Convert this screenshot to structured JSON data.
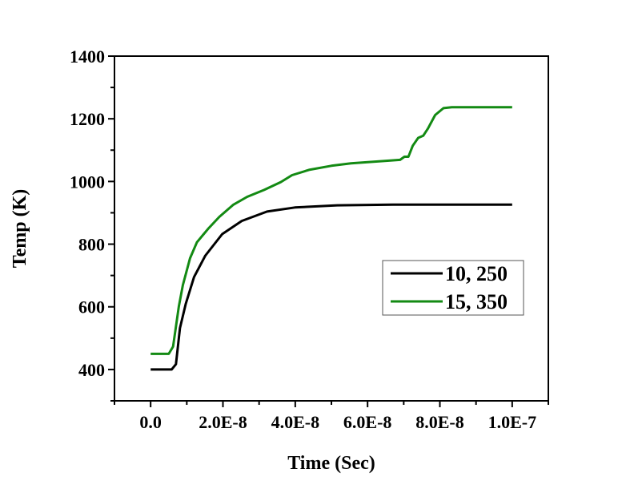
{
  "chart_data": {
    "type": "line",
    "title": "",
    "xlabel": "Time (Sec)",
    "ylabel": "Temp (K)",
    "xlim": [
      -1e-08,
      1.1e-07
    ],
    "ylim": [
      300,
      1400
    ],
    "xticks": [
      0,
      2e-08,
      4e-08,
      6e-08,
      8e-08,
      1e-07
    ],
    "xtick_labels": [
      "0.0",
      "2.0E-8",
      "4.0E-8",
      "6.0E-8",
      "8.0E-8",
      "1.0E-7"
    ],
    "yticks": [
      400,
      600,
      800,
      1000,
      1200,
      1400
    ],
    "ytick_labels": [
      "400",
      "600",
      "800",
      "1000",
      "1200",
      "1400"
    ],
    "grid": false,
    "legend_position": "center-right",
    "series": [
      {
        "name": "10, 250",
        "color": "#000000",
        "x": [
          0,
          5.8e-09,
          7e-09,
          8.1e-09,
          9.7e-09,
          1.2e-08,
          1.51e-08,
          1.98e-08,
          2.52e-08,
          3.22e-08,
          3.99e-08,
          5.16e-08,
          6.7e-08,
          1e-07
        ],
        "y": [
          400,
          400,
          417,
          532,
          609,
          695,
          763,
          832,
          874,
          904,
          917,
          924,
          926,
          926
        ]
      },
      {
        "name": "15, 350",
        "color": "#138a13",
        "x": [
          0,
          5e-09,
          6.2e-09,
          7.8e-09,
          8.9e-09,
          1.09e-08,
          1.28e-08,
          1.59e-08,
          1.9e-08,
          2.29e-08,
          2.67e-08,
          3.14e-08,
          3.6e-08,
          3.91e-08,
          4.38e-08,
          5e-08,
          5.54e-08,
          6.32e-08,
          6.9e-08,
          7.02e-08,
          7.13e-08,
          7.25e-08,
          7.4e-08,
          7.54e-08,
          7.67e-08,
          7.87e-08,
          8.1e-08,
          8.33e-08,
          1e-07
        ],
        "y": [
          450,
          450,
          473,
          601,
          669,
          755,
          806,
          849,
          887,
          926,
          951,
          973,
          998,
          1020,
          1037,
          1050,
          1058,
          1064,
          1069,
          1079,
          1079,
          1114,
          1139,
          1146,
          1169,
          1212,
          1234,
          1237,
          1237
        ]
      }
    ]
  }
}
